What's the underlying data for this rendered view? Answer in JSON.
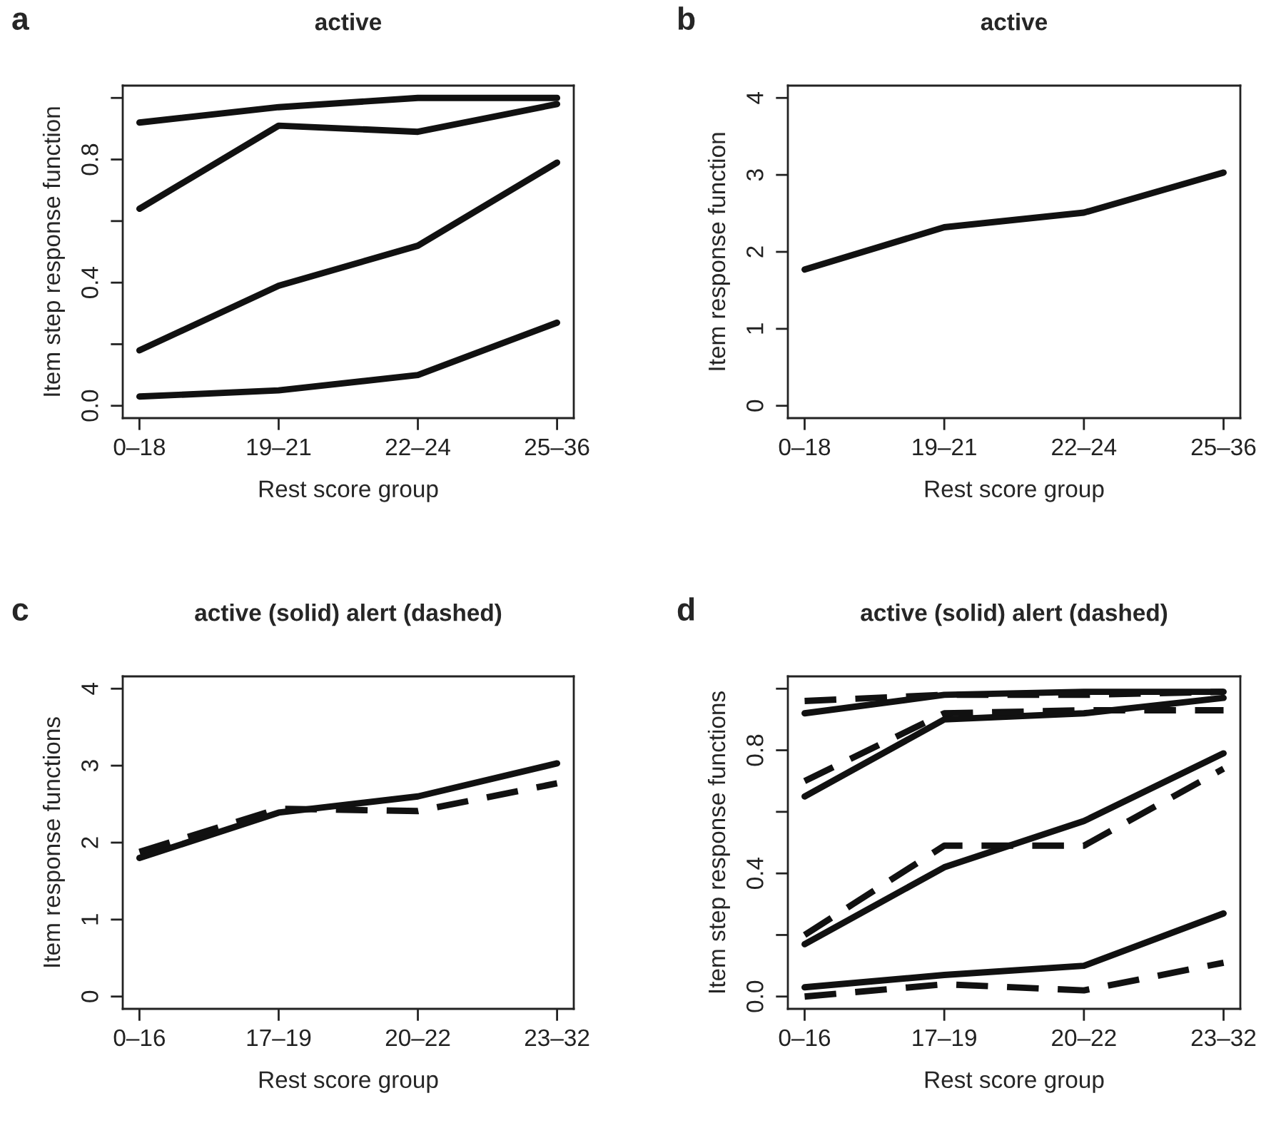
{
  "chart_data": [
    {
      "type": "line",
      "title": "active",
      "annotations": [
        "a"
      ],
      "xlabel": "Rest score group",
      "ylabel": "Item step response function",
      "categories": [
        "0–18",
        "19–21",
        "22–24",
        "25–36"
      ],
      "ylim": [
        -0.04,
        1.04
      ],
      "yticks": [
        {
          "value": 0,
          "label": "0.0"
        },
        {
          "value": 0.2,
          "label": null
        },
        0.4,
        {
          "value": 0.6,
          "label": null
        },
        0.8,
        {
          "value": 1.0,
          "label": null
        }
      ],
      "line_style": "solid",
      "grid": false,
      "legend": false,
      "series": [
        {
          "color": "#111111",
          "values": [
            0.92,
            0.97,
            1.0,
            1.0
          ]
        },
        {
          "color": "#111111",
          "values": [
            0.64,
            0.91,
            0.89,
            0.98
          ]
        },
        {
          "color": "#111111",
          "values": [
            0.18,
            0.39,
            0.52,
            0.79
          ]
        },
        {
          "color": "#111111",
          "values": [
            0.03,
            0.05,
            0.1,
            0.27
          ]
        }
      ]
    },
    {
      "type": "line",
      "title": "active",
      "annotations": [
        "b"
      ],
      "xlabel": "Rest score group",
      "ylabel": "Item response function",
      "categories": [
        "0–18",
        "19–21",
        "22–24",
        "25–36"
      ],
      "ylim": [
        -0.16,
        4.16
      ],
      "yticks": [
        0,
        1,
        2,
        3,
        4
      ],
      "line_style": "solid",
      "grid": false,
      "legend": false,
      "series": [
        {
          "color": "#111111",
          "values": [
            1.77,
            2.32,
            2.51,
            3.03
          ]
        }
      ]
    },
    {
      "type": "line",
      "title": "active (solid) alert (dashed)",
      "annotations": [
        "c"
      ],
      "xlabel": "Rest score group",
      "ylabel": "Item response functions",
      "categories": [
        "0–16",
        "17–19",
        "20–22",
        "23–32"
      ],
      "ylim": [
        -0.16,
        4.16
      ],
      "yticks": [
        0,
        1,
        2,
        3,
        4
      ],
      "grid": false,
      "legend": false,
      "series": [
        {
          "color": "#111111",
          "line_style": "solid",
          "values": [
            1.8,
            2.39,
            2.6,
            3.03
          ]
        },
        {
          "color": "#111111",
          "line_style": "dashed",
          "values": [
            1.88,
            2.44,
            2.41,
            2.77
          ]
        }
      ]
    },
    {
      "type": "line",
      "title": "active (solid) alert (dashed)",
      "annotations": [
        "d"
      ],
      "xlabel": "Rest score group",
      "ylabel": "Item step response functions",
      "categories": [
        "0–16",
        "17–19",
        "20–22",
        "23–32"
      ],
      "ylim": [
        -0.04,
        1.04
      ],
      "yticks": [
        {
          "value": 0,
          "label": "0.0"
        },
        {
          "value": 0.2,
          "label": null
        },
        0.4,
        {
          "value": 0.6,
          "label": null
        },
        0.8,
        {
          "value": 1.0,
          "label": null
        }
      ],
      "grid": false,
      "legend": false,
      "series": [
        {
          "color": "#111111",
          "line_style": "solid",
          "values": [
            0.92,
            0.98,
            0.99,
            0.99
          ]
        },
        {
          "color": "#111111",
          "line_style": "dashed",
          "values": [
            0.96,
            0.98,
            0.98,
            0.99
          ]
        },
        {
          "color": "#111111",
          "line_style": "solid",
          "values": [
            0.65,
            0.9,
            0.92,
            0.97
          ]
        },
        {
          "color": "#111111",
          "line_style": "dashed",
          "values": [
            0.7,
            0.92,
            0.93,
            0.93
          ]
        },
        {
          "color": "#111111",
          "line_style": "solid",
          "values": [
            0.17,
            0.42,
            0.57,
            0.79
          ]
        },
        {
          "color": "#111111",
          "line_style": "dashed",
          "values": [
            0.2,
            0.49,
            0.49,
            0.74
          ]
        },
        {
          "color": "#111111",
          "line_style": "solid",
          "values": [
            0.03,
            0.07,
            0.1,
            0.27
          ]
        },
        {
          "color": "#111111",
          "line_style": "dashed",
          "values": [
            0.0,
            0.04,
            0.02,
            0.11
          ]
        }
      ]
    }
  ]
}
